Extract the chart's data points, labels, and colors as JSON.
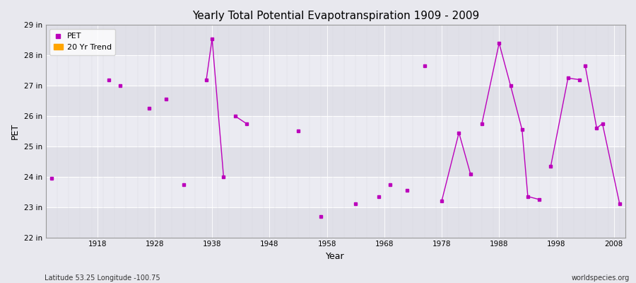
{
  "title": "Yearly Total Potential Evapotranspiration 1909 - 2009",
  "xlabel": "Year",
  "ylabel": "PET",
  "footnote_left": "Latitude 53.25 Longitude -100.75",
  "footnote_right": "worldspecies.org",
  "background_color": "#e8e8ee",
  "plot_bg_light": "#ebebf0",
  "plot_bg_dark": "#dadadf",
  "grid_color": "#ffffff",
  "pet_color": "#bb00bb",
  "trend_color": "#ffa500",
  "ylim": [
    22,
    29
  ],
  "xlim": [
    1909,
    2010
  ],
  "ytick_labels": [
    "22 in",
    "23 in",
    "24 in",
    "25 in",
    "26 in",
    "27 in",
    "28 in",
    "29 in"
  ],
  "ytick_values": [
    22,
    23,
    24,
    25,
    26,
    27,
    28,
    29
  ],
  "xtick_values": [
    1918,
    1928,
    1938,
    1948,
    1958,
    1968,
    1978,
    1988,
    1998,
    2008
  ],
  "pet_data": [
    [
      1910,
      23.95
    ],
    [
      1920,
      27.2
    ],
    [
      1922,
      27.0
    ],
    [
      1927,
      26.25
    ],
    [
      1930,
      26.55
    ],
    [
      1933,
      23.75
    ],
    [
      1937,
      27.2
    ],
    [
      1938,
      28.55
    ],
    [
      1940,
      24.0
    ],
    [
      1942,
      26.0
    ],
    [
      1944,
      25.75
    ],
    [
      1953,
      25.5
    ],
    [
      1957,
      22.7
    ],
    [
      1963,
      23.1
    ],
    [
      1967,
      23.35
    ],
    [
      1969,
      23.75
    ],
    [
      1972,
      23.55
    ],
    [
      1975,
      27.65
    ],
    [
      1978,
      23.2
    ],
    [
      1981,
      25.45
    ],
    [
      1983,
      24.1
    ],
    [
      1985,
      25.75
    ],
    [
      1988,
      28.4
    ],
    [
      1990,
      27.0
    ],
    [
      1992,
      25.55
    ],
    [
      1993,
      23.35
    ],
    [
      1995,
      23.25
    ],
    [
      1997,
      24.35
    ],
    [
      2000,
      27.25
    ],
    [
      2002,
      27.2
    ],
    [
      2003,
      27.65
    ],
    [
      2005,
      25.6
    ],
    [
      2006,
      25.75
    ],
    [
      2009,
      23.1
    ]
  ],
  "connected_segments": [
    [
      [
        1937,
        27.2
      ],
      [
        1938,
        28.55
      ],
      [
        1940,
        24.0
      ]
    ],
    [
      [
        1942,
        26.0
      ],
      [
        1944,
        25.75
      ]
    ],
    [
      [
        1978,
        23.2
      ],
      [
        1981,
        25.45
      ],
      [
        1983,
        24.1
      ]
    ],
    [
      [
        1985,
        25.75
      ],
      [
        1988,
        28.4
      ],
      [
        1990,
        27.0
      ],
      [
        1992,
        25.55
      ],
      [
        1993,
        23.35
      ],
      [
        1995,
        23.25
      ]
    ],
    [
      [
        1997,
        24.35
      ],
      [
        2000,
        27.25
      ],
      [
        2002,
        27.2
      ]
    ],
    [
      [
        2003,
        27.65
      ],
      [
        2005,
        25.6
      ],
      [
        2006,
        25.75
      ],
      [
        2009,
        23.1
      ]
    ]
  ]
}
